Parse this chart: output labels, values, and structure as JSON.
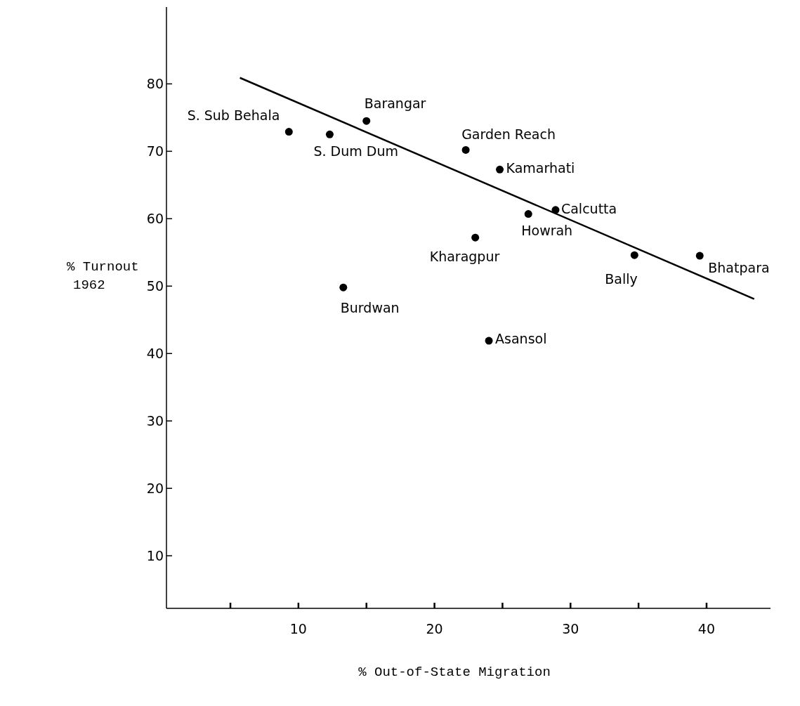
{
  "chart_data": {
    "type": "scatter",
    "xlabel": "% Out-of-State Migration",
    "ylabel": "% Turnout\n1962",
    "xlim": [
      0.3,
      44.7
    ],
    "ylim": [
      2.2,
      91.4
    ],
    "xticks": [
      {
        "value": 5,
        "label": null
      },
      10,
      {
        "value": 15,
        "label": null
      },
      20,
      {
        "value": 25,
        "label": null
      },
      30,
      {
        "value": 35,
        "label": null
      },
      40
    ],
    "yticks": [
      10,
      20,
      30,
      40,
      50,
      60,
      70,
      80
    ],
    "grid": false,
    "marker": "circle",
    "series": [
      {
        "color": "#000000",
        "x": [
          9.3,
          12.3,
          15.0,
          22.3,
          24.8,
          26.9,
          28.9,
          23.0,
          34.7,
          39.5,
          13.3,
          24.0
        ],
        "values": [
          72.9,
          72.5,
          74.5,
          70.2,
          67.3,
          60.7,
          61.3,
          57.2,
          54.6,
          54.5,
          49.8,
          41.9
        ]
      },
      {
        "type": "line",
        "color": "#000000",
        "x": [
          5.7,
          43.5
        ],
        "values": [
          80.9,
          48.1
        ],
        "line_style": "solid",
        "marker": "none"
      }
    ],
    "annotations": [
      {
        "text": "S. Sub Behala",
        "x": 9.3,
        "y": 72.9
      },
      {
        "text": "S. Dum Dum",
        "x": 12.3,
        "y": 72.5
      },
      {
        "text": "Barangar",
        "x": 15.0,
        "y": 74.5
      },
      {
        "text": "Garden Reach",
        "x": 22.3,
        "y": 70.2
      },
      {
        "text": "Kamarhati",
        "x": 24.8,
        "y": 67.3
      },
      {
        "text": "Howrah",
        "x": 26.9,
        "y": 60.7
      },
      {
        "text": "Calcutta",
        "x": 28.9,
        "y": 61.3
      },
      {
        "text": "Kharagpur",
        "x": 23.0,
        "y": 57.2
      },
      {
        "text": "Bally",
        "x": 34.7,
        "y": 54.6
      },
      {
        "text": "Bhatpara",
        "x": 39.5,
        "y": 54.5
      },
      {
        "text": "Burdwan",
        "x": 13.3,
        "y": 49.8
      },
      {
        "text": "Asansol",
        "x": 24.0,
        "y": 41.9
      }
    ]
  }
}
